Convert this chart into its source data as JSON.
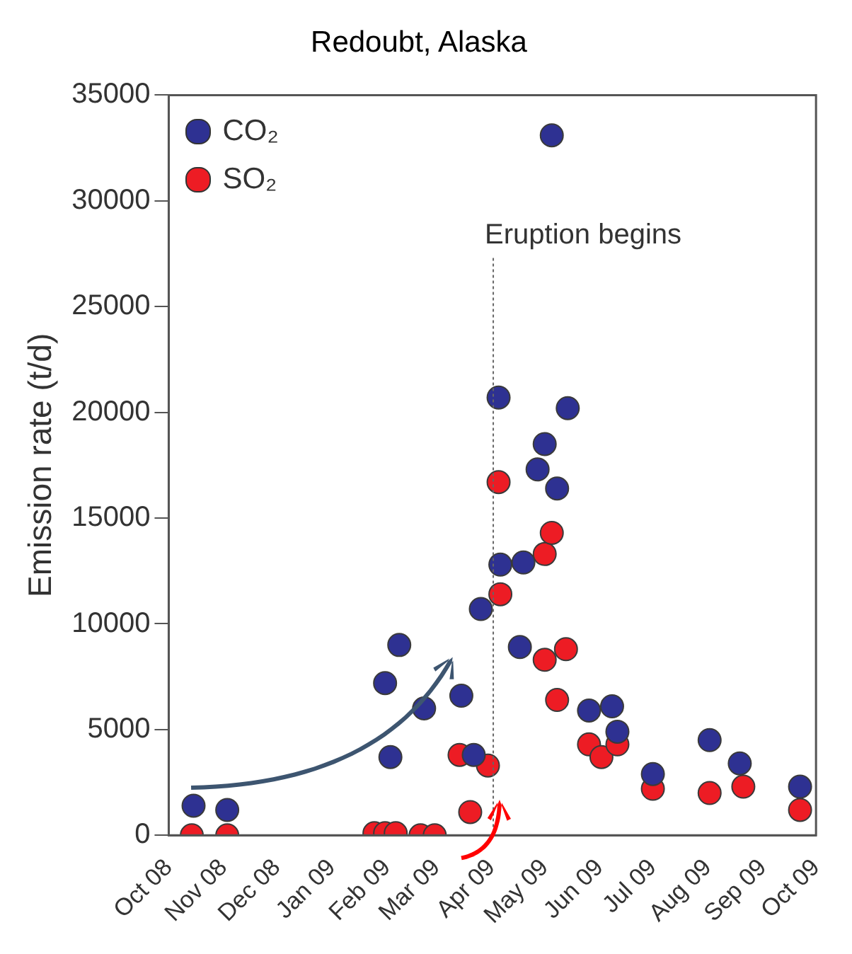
{
  "chart_data": {
    "type": "scatter",
    "title": "Redoubt, Alaska",
    "ylabel": "Emission rate (t/d)",
    "xlim": [
      "2008-10-01",
      "2009-10-01"
    ],
    "xticks": [
      {
        "value": "2008-10-01",
        "label": "Oct 08"
      },
      {
        "value": "2008-11-01",
        "label": "Nov 08"
      },
      {
        "value": "2008-12-01",
        "label": "Dec 08"
      },
      {
        "value": "2009-01-01",
        "label": "Jan 09"
      },
      {
        "value": "2009-02-01",
        "label": "Feb 09"
      },
      {
        "value": "2009-03-01",
        "label": "Mar 09"
      },
      {
        "value": "2009-04-01",
        "label": "Apr 09"
      },
      {
        "value": "2009-05-01",
        "label": "May 09"
      },
      {
        "value": "2009-06-01",
        "label": "Jun 09"
      },
      {
        "value": "2009-07-01",
        "label": "Jul 09"
      },
      {
        "value": "2009-08-01",
        "label": "Aug 09"
      },
      {
        "value": "2009-09-01",
        "label": "Sep 09"
      },
      {
        "value": "2009-10-01",
        "label": "Oct 09"
      }
    ],
    "ylim": [
      0,
      35000
    ],
    "yticks": [
      0,
      5000,
      10000,
      15000,
      20000,
      25000,
      30000,
      35000
    ],
    "series": [
      {
        "name": "CO₂",
        "color": "#2e3192",
        "x": [
          "2008-10-15",
          "2008-11-03",
          "2009-01-31",
          "2009-02-08",
          "2009-02-03",
          "2009-02-22",
          "2009-03-15",
          "2009-03-22",
          "2009-03-26",
          "2009-04-05",
          "2009-04-06",
          "2009-04-19",
          "2009-04-17",
          "2009-04-27",
          "2009-05-01",
          "2009-05-08",
          "2009-05-14",
          "2009-05-05",
          "2009-05-26",
          "2009-06-08",
          "2009-06-11",
          "2009-07-01",
          "2009-08-02",
          "2009-08-19",
          "2009-09-22"
        ],
        "values": [
          1400,
          1200,
          7200,
          9000,
          3700,
          6000,
          6600,
          3800,
          10700,
          20700,
          12800,
          12900,
          8900,
          17300,
          18500,
          16400,
          20200,
          33100,
          5900,
          6100,
          4900,
          2900,
          4500,
          3400,
          2300
        ]
      },
      {
        "name": "SO₂",
        "color": "#ed1c24",
        "x": [
          "2008-10-14",
          "2008-11-03",
          "2009-01-25",
          "2009-01-31",
          "2009-02-06",
          "2009-02-20",
          "2009-02-28",
          "2009-03-20",
          "2009-03-14",
          "2009-03-30",
          "2009-04-05",
          "2009-04-06",
          "2009-05-01",
          "2009-05-05",
          "2009-05-01",
          "2009-05-13",
          "2009-05-08",
          "2009-05-26",
          "2009-06-02",
          "2009-06-11",
          "2009-07-01",
          "2009-08-02",
          "2009-08-21",
          "2009-09-22"
        ],
        "values": [
          0,
          0,
          100,
          100,
          100,
          0,
          0,
          1100,
          3800,
          3300,
          16700,
          11400,
          13300,
          14300,
          8300,
          8800,
          6400,
          4300,
          3700,
          4300,
          2200,
          2000,
          2300,
          1200
        ]
      }
    ],
    "ref_lines": [
      {
        "axis": "x",
        "value": "2009-04-02",
        "label": "Eruption begins",
        "color": "#666666",
        "line_style": "dotted"
      }
    ],
    "legend": "top left",
    "marker": "circle",
    "grid": false
  }
}
